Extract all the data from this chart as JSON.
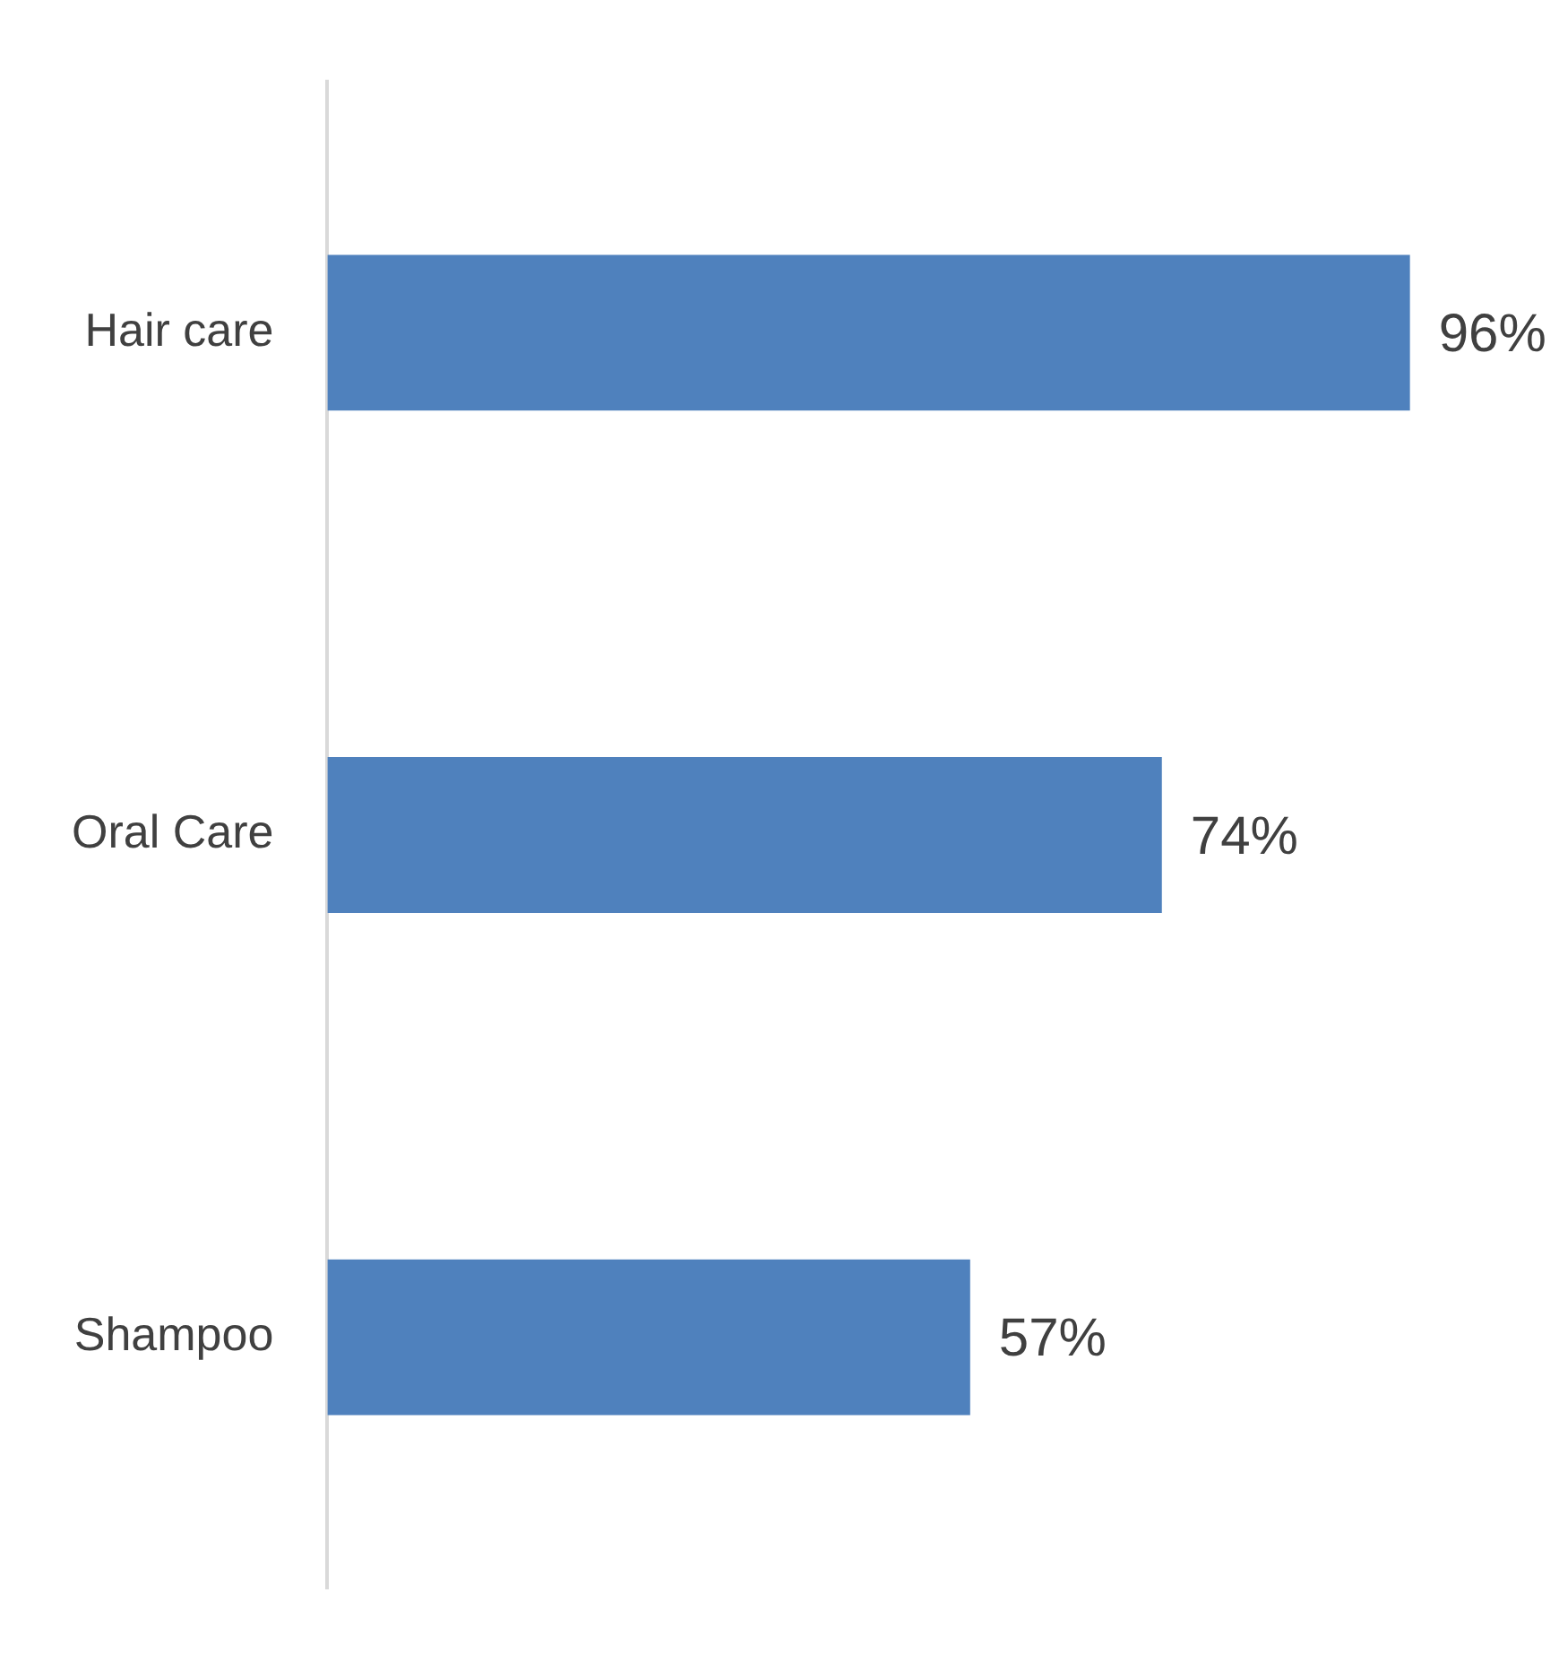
{
  "chart_data": {
    "type": "bar",
    "orientation": "horizontal",
    "categories": [
      "Hair care",
      "Oral Care",
      "Shampoo"
    ],
    "values": [
      96,
      74,
      57
    ],
    "value_labels": [
      "96%",
      "74%",
      "57%"
    ],
    "color": "#4f81bd",
    "grid": false,
    "legend": false
  }
}
